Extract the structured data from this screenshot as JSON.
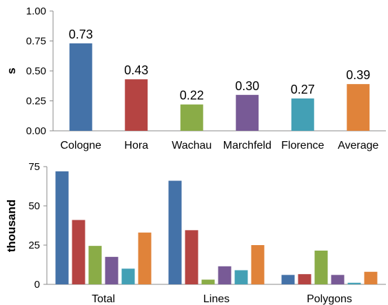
{
  "palette": [
    "#4472a8",
    "#b54442",
    "#8aac47",
    "#785a96",
    "#43a0b5",
    "#e0833a"
  ],
  "chart_data": [
    {
      "type": "bar",
      "categories": [
        "Cologne",
        "Hora",
        "Wachau",
        "Marchfeld",
        "Florence",
        "Average"
      ],
      "values": [
        0.73,
        0.43,
        0.22,
        0.3,
        0.27,
        0.39
      ],
      "data_labels": [
        "0.73",
        "0.43",
        "0.22",
        "0.30",
        "0.27",
        "0.39"
      ],
      "ylabel": "s",
      "ylim": [
        0,
        1
      ],
      "yticks": [
        0,
        0.25,
        0.5,
        0.75,
        1
      ],
      "ytick_labels": [
        "0.00",
        "0.25",
        "0.50",
        "0.75",
        "1.00"
      ],
      "grid": false
    },
    {
      "type": "bar",
      "categories": [
        "Total",
        "Lines",
        "Polygons"
      ],
      "series": [
        {
          "values": [
            72,
            66,
            6
          ]
        },
        {
          "values": [
            41,
            34.5,
            6.5
          ]
        },
        {
          "values": [
            24.5,
            3,
            21.5
          ]
        },
        {
          "values": [
            17.5,
            11.5,
            6
          ]
        },
        {
          "values": [
            10,
            9,
            1
          ]
        },
        {
          "values": [
            33,
            25,
            8
          ]
        }
      ],
      "ylabel": "thousand",
      "ylim": [
        0,
        75
      ],
      "yticks": [
        0,
        25,
        50,
        75
      ],
      "ytick_labels": [
        "0",
        "25",
        "50",
        "75"
      ],
      "grid": false
    }
  ]
}
